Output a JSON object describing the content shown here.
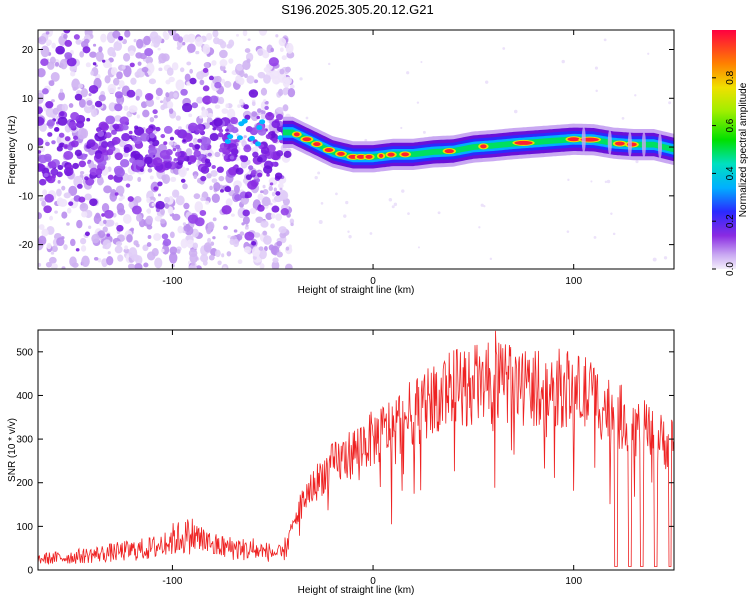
{
  "title": "S196.2025.305.20.12.G21",
  "chart_data": [
    {
      "type": "heatmap",
      "xlabel": "Height of straight line (km)",
      "ylabel": "Frequency (Hz)",
      "xlim": [
        -167,
        150
      ],
      "ylim": [
        -25,
        24
      ],
      "xticks": [
        -100,
        0,
        100
      ],
      "xtick_labels": [
        "-100",
        "0",
        "100"
      ],
      "yticks": [
        -20,
        -10,
        0,
        10,
        20
      ],
      "ytick_labels": [
        "-20",
        "-10",
        "0",
        "10",
        "20"
      ],
      "colorbar": {
        "label": "Normalized spectral amplitude",
        "range": [
          0,
          1
        ],
        "ticks": [
          0,
          0.2,
          0.4,
          0.6,
          0.8
        ],
        "tick_labels": [
          "0.0",
          "0.2",
          "0.4",
          "0.6",
          "0.8"
        ]
      },
      "ridge": {
        "x": [
          -45,
          -40,
          -30,
          -20,
          -10,
          0,
          10,
          20,
          30,
          40,
          50,
          60,
          70,
          80,
          90,
          100,
          110,
          120,
          130,
          140,
          150
        ],
        "freq": [
          3,
          3,
          1,
          -1,
          -2,
          -2,
          -1.5,
          -1.5,
          -1,
          -0.8,
          0,
          0.3,
          0.7,
          1,
          1.3,
          1.6,
          1.5,
          0.8,
          0.5,
          0.5,
          -0.5
        ]
      }
    },
    {
      "type": "line",
      "xlabel": "Height of straight line (km)",
      "ylabel": "SNR (10 * v/v)",
      "xlim": [
        -167,
        150
      ],
      "ylim": [
        0,
        550
      ],
      "xticks": [
        -100,
        0,
        100
      ],
      "xtick_labels": [
        "-100",
        "0",
        "100"
      ],
      "yticks": [
        0,
        100,
        200,
        300,
        400,
        500
      ],
      "ytick_labels": [
        "0",
        "100",
        "200",
        "300",
        "400",
        "500"
      ],
      "series": [
        {
          "name": "SNR",
          "color": "#ee2222",
          "x": [
            -167,
            -150,
            -130,
            -110,
            -100,
            -90,
            -80,
            -70,
            -60,
            -50,
            -45,
            -40,
            -35,
            -30,
            -25,
            -20,
            -15,
            -10,
            -5,
            0,
            5,
            10,
            15,
            20,
            25,
            30,
            35,
            40,
            50,
            60,
            70,
            80,
            90,
            100,
            105,
            110,
            115,
            120,
            125,
            130,
            135,
            140,
            145,
            150
          ],
          "y": [
            25,
            30,
            40,
            50,
            70,
            80,
            55,
            50,
            45,
            40,
            35,
            100,
            160,
            190,
            220,
            240,
            255,
            270,
            290,
            300,
            315,
            330,
            345,
            360,
            375,
            390,
            410,
            415,
            425,
            430,
            425,
            420,
            420,
            410,
            405,
            395,
            375,
            360,
            345,
            330,
            320,
            300,
            295,
            290
          ]
        }
      ],
      "dropouts_x": [
        121,
        128,
        134,
        141,
        148
      ]
    }
  ]
}
